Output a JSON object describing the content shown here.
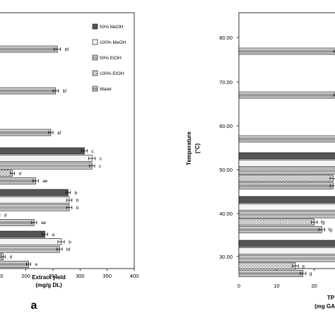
{
  "chart_data": [
    {
      "type": "bar",
      "orientation": "horizontal",
      "panel_label": "a",
      "xlabel": "Extract yield",
      "xlabel_unit": "(mg/g DL)",
      "ylabel": "",
      "xlim": [
        0,
        400
      ],
      "x_ticks": [
        "150",
        "200",
        "250",
        "300",
        "350",
        "400"
      ],
      "grid": false,
      "legend_position": "top-right",
      "series": [
        {
          "name": "50% MeOH"
        },
        {
          "name": "100% MeOH"
        },
        {
          "name": "50% EtOH"
        },
        {
          "name": "100% EtOH"
        },
        {
          "name": "Water"
        }
      ],
      "groups": [
        {
          "bars": [
            {
              "series": "Water",
              "value": 258,
              "err": 6,
              "sig": "bf"
            }
          ]
        },
        {
          "bars": [
            {
              "series": "Water",
              "value": 255,
              "err": 5,
              "sig": "bf"
            }
          ]
        },
        {
          "bars": [
            {
              "series": "Water",
              "value": 246,
              "err": 4,
              "sig": "af"
            }
          ]
        },
        {
          "bars": [
            {
              "series": "50% MeOH",
              "value": 308,
              "err": 5,
              "sig": "c"
            },
            {
              "series": "100% MeOH",
              "value": 322,
              "err": 6,
              "sig": "c"
            },
            {
              "series": "50% EtOH",
              "value": 322,
              "err": 5,
              "sig": "c"
            },
            {
              "series": "100% EtOH",
              "value": 175,
              "err": 4,
              "sig": "d"
            },
            {
              "series": "Water",
              "value": 218,
              "err": 5,
              "sig": "ae"
            }
          ]
        },
        {
          "bars": [
            {
              "series": "50% MeOH",
              "value": 278,
              "err": 4,
              "sig": "b"
            },
            {
              "series": "100% MeOH",
              "value": 280,
              "err": 5,
              "sig": "b"
            },
            {
              "series": "50% EtOH",
              "value": 280,
              "err": 5,
              "sig": "b"
            },
            {
              "series": "100% EtOH",
              "value": 148,
              "err": 4,
              "sig": "d"
            },
            {
              "series": "Water",
              "value": 215,
              "err": 5,
              "sig": "ae"
            }
          ]
        },
        {
          "bars": [
            {
              "series": "50% MeOH",
              "value": 235,
              "err": 5,
              "sig": "a"
            },
            {
              "series": "100% MeOH",
              "value": 265,
              "err": 6,
              "sig": "b"
            },
            {
              "series": "50% EtOH",
              "value": 262,
              "err": 5,
              "sig": "bf"
            },
            {
              "series": "100% EtOH",
              "value": 158,
              "err": 4,
              "sig": "d"
            },
            {
              "series": "Water",
              "value": 205,
              "err": 4,
              "sig": "e"
            }
          ]
        }
      ]
    },
    {
      "type": "bar",
      "orientation": "horizontal",
      "ylabel": "Temperature",
      "ylabel_unit": "(°C)",
      "xlabel": "TP",
      "xlabel_unit": "(mg GA",
      "xlim": [
        0,
        30
      ],
      "x_ticks": [
        "0",
        "10",
        "20"
      ],
      "y_ticks": [
        "80.00",
        "70.00",
        "60.00",
        "50.00",
        "40.00",
        "30.00"
      ],
      "y_values": [
        80,
        70,
        60,
        50,
        40,
        30
      ],
      "grid": false,
      "groups": [
        {
          "bars": [
            {
              "series": "Water",
              "value": 26,
              "err": 0.8,
              "sig": ""
            }
          ]
        },
        {
          "bars": [
            {
              "series": "Water",
              "value": 26,
              "err": 0.8,
              "sig": ""
            }
          ]
        },
        {
          "bars": [
            {
              "series": "Water",
              "value": 31,
              "err": 0.8,
              "sig": ""
            }
          ]
        },
        {
          "bars": [
            {
              "series": "50% MeOH",
              "value": 31,
              "err": 0.5,
              "sig": ""
            },
            {
              "series": "100% MeOH",
              "value": 31,
              "err": 0.5,
              "sig": ""
            },
            {
              "series": "50% EtOH",
              "value": 31,
              "err": 0.5,
              "sig": ""
            },
            {
              "series": "100% EtOH",
              "value": 25,
              "err": 0.8,
              "sig": ""
            },
            {
              "series": "Water",
              "value": 25,
              "err": 0.8,
              "sig": ""
            }
          ]
        },
        {
          "bars": [
            {
              "series": "50% MeOH",
              "value": 31,
              "err": 0.5,
              "sig": ""
            },
            {
              "series": "100% MeOH",
              "value": 31,
              "err": 0.5,
              "sig": ""
            },
            {
              "series": "50% EtOH",
              "value": 31,
              "err": 0.5,
              "sig": ""
            },
            {
              "series": "100% EtOH",
              "value": 20,
              "err": 0.8,
              "sig": "fg"
            },
            {
              "series": "Water",
              "value": 22,
              "err": 0.8,
              "sig": "fg"
            }
          ]
        },
        {
          "bars": [
            {
              "series": "50% MeOH",
              "value": 31,
              "err": 0.5,
              "sig": ""
            },
            {
              "series": "100% MeOH",
              "value": 31,
              "err": 0.5,
              "sig": ""
            },
            {
              "series": "50% EtOH",
              "value": 31,
              "err": 0.5,
              "sig": ""
            },
            {
              "series": "100% EtOH",
              "value": 15,
              "err": 0.8,
              "sig": "g"
            },
            {
              "series": "Water",
              "value": 17,
              "err": 0.8,
              "sig": "g"
            }
          ]
        }
      ]
    }
  ]
}
